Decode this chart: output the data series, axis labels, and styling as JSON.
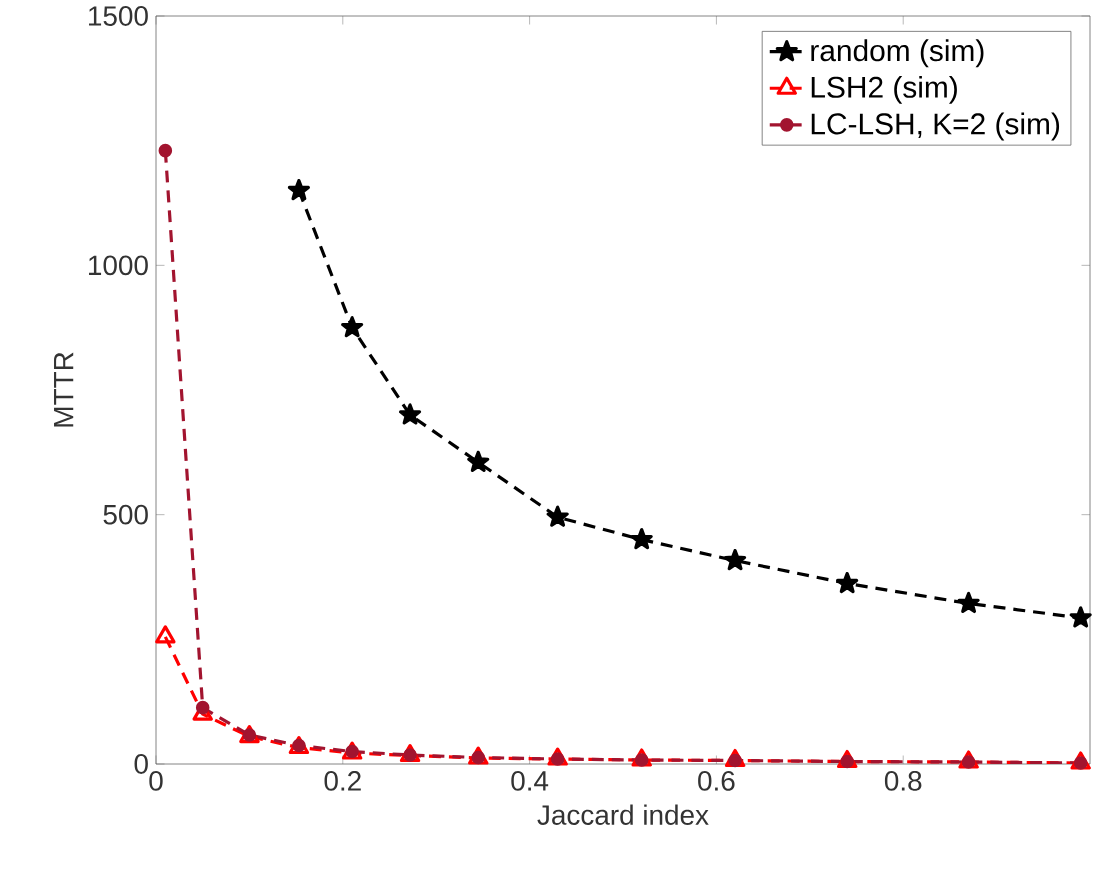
{
  "chart_data": {
    "type": "line",
    "xlabel": "Jaccard index",
    "ylabel": "MTTR",
    "xlim": [
      0,
      1
    ],
    "ylim": [
      0,
      1500
    ],
    "xticks": [
      0,
      0.2,
      0.4,
      0.6,
      0.8
    ],
    "yticks": [
      0,
      500,
      1000,
      1500
    ],
    "legend": "top right",
    "grid": false,
    "line_style": "dashed",
    "series": [
      {
        "name": "random (sim)",
        "color": "#000000",
        "marker": "star",
        "x": [
          0.153,
          0.21,
          0.272,
          0.345,
          0.43,
          0.52,
          0.62,
          0.74,
          0.87,
          0.99
        ],
        "values": [
          1150,
          875,
          700,
          605,
          495,
          450,
          408,
          362,
          322,
          293
        ]
      },
      {
        "name": "LSH2 (sim)",
        "color": "#ff0000",
        "marker": "triangle",
        "x": [
          0.01,
          0.05,
          0.1,
          0.153,
          0.21,
          0.272,
          0.345,
          0.43,
          0.52,
          0.62,
          0.74,
          0.87,
          0.99
        ],
        "values": [
          255,
          100,
          55,
          33,
          22,
          17,
          12,
          10,
          8,
          7,
          5,
          4,
          2
        ]
      },
      {
        "name": "LC-LSH, K=2 (sim)",
        "color": "#a2142f",
        "marker": "circle",
        "x": [
          0.01,
          0.05,
          0.1,
          0.153,
          0.21,
          0.272,
          0.345,
          0.43,
          0.52,
          0.62,
          0.74,
          0.87,
          0.99
        ],
        "values": [
          1230,
          113,
          58,
          37,
          25,
          18,
          13,
          10,
          8,
          7,
          5,
          4,
          2
        ]
      }
    ]
  }
}
